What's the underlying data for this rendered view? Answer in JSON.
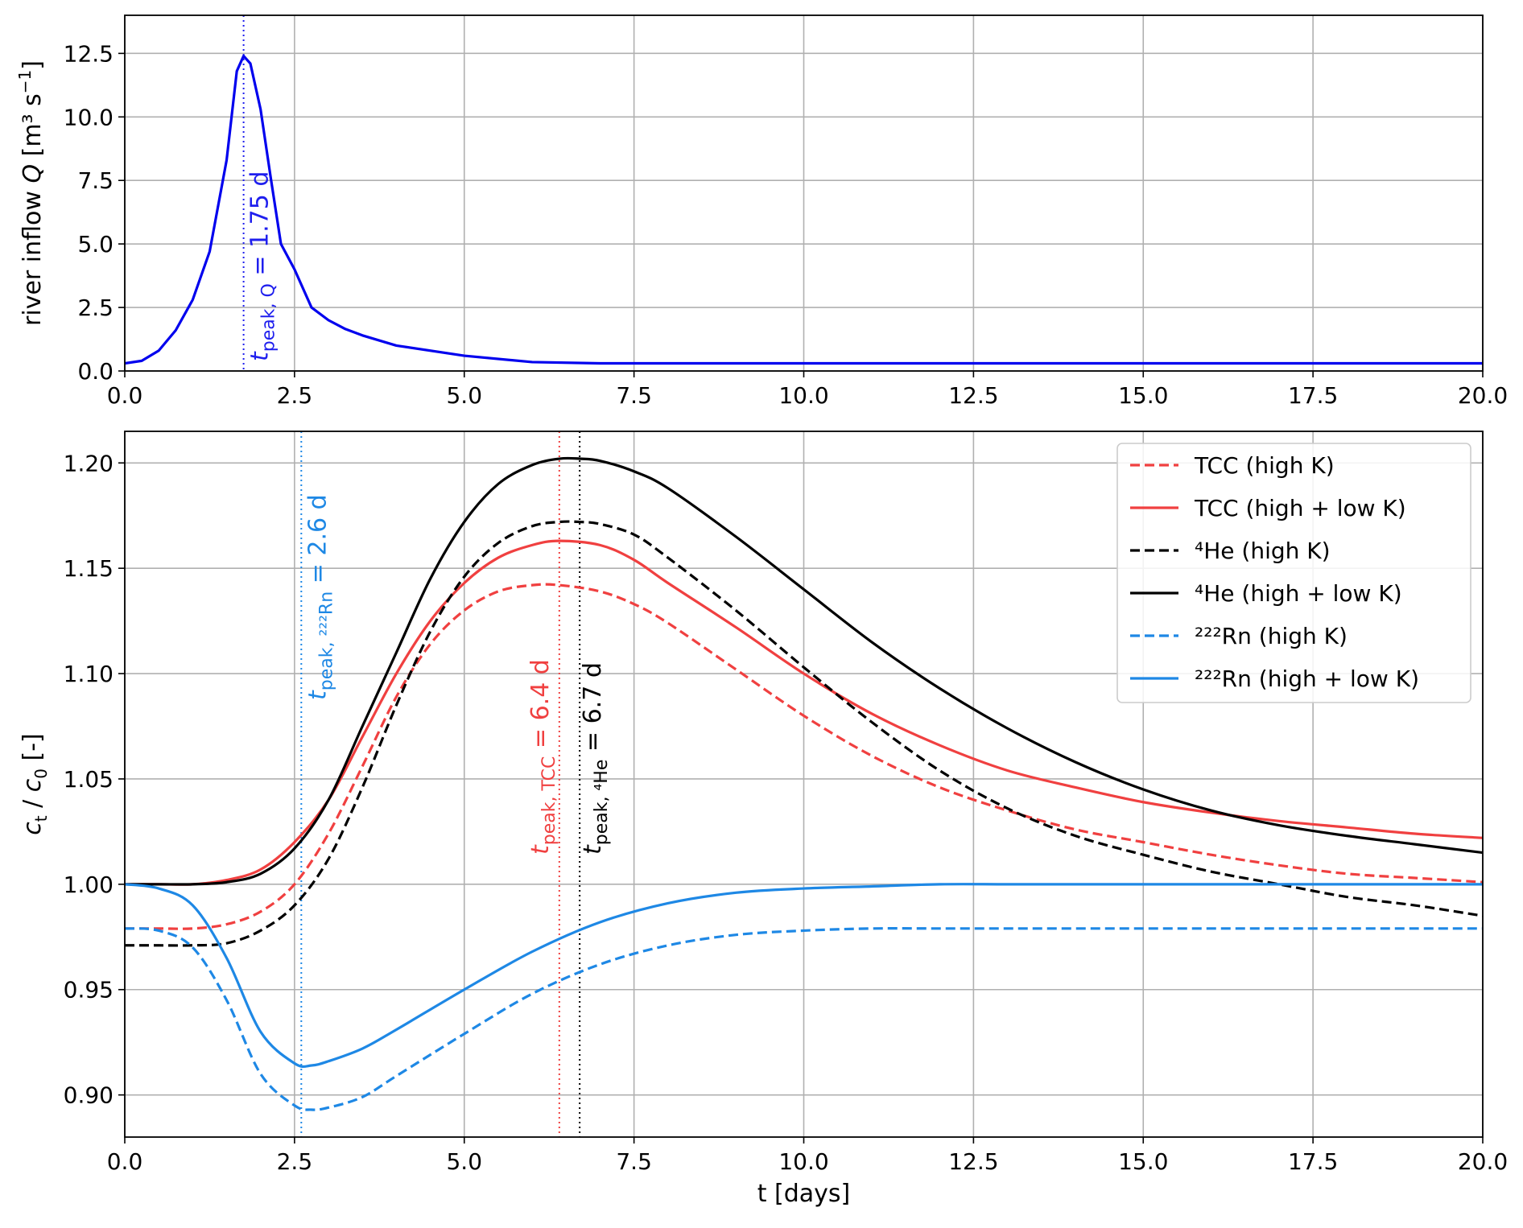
{
  "chart_data": [
    {
      "type": "line",
      "xlim": [
        0,
        20
      ],
      "ylim": [
        0,
        14
      ],
      "xticks": [
        "0.0",
        "2.5",
        "5.0",
        "7.5",
        "10.0",
        "12.5",
        "15.0",
        "17.5",
        "20.0"
      ],
      "yticks": [
        "0.0",
        "2.5",
        "5.0",
        "7.5",
        "10.0",
        "12.5"
      ],
      "ylabel": "river inflow Q [m³ s⁻¹]",
      "grid": true,
      "series": [
        {
          "color": "#0000ee",
          "style": "solid",
          "x": [
            0,
            0.25,
            0.5,
            0.75,
            1.0,
            1.25,
            1.5,
            1.65,
            1.75,
            1.85,
            2.0,
            2.15,
            2.3,
            2.5,
            2.75,
            3.0,
            3.25,
            3.5,
            4.0,
            5.0,
            6.0,
            7.0,
            8.0,
            10.0,
            12.5,
            15.0,
            17.5,
            20.0
          ],
          "y": [
            0.3,
            0.4,
            0.8,
            1.6,
            2.8,
            4.7,
            8.3,
            11.8,
            12.4,
            12.1,
            10.3,
            7.6,
            5.0,
            4.0,
            2.5,
            2.0,
            1.65,
            1.4,
            1.0,
            0.6,
            0.35,
            0.3,
            0.3,
            0.3,
            0.3,
            0.3,
            0.3,
            0.3
          ]
        }
      ],
      "annotations": [
        {
          "x": 1.75,
          "color": "#1f1fee",
          "main": "t",
          "sub": "peak, Q",
          "eq": " = ",
          "value": "1.75 d"
        }
      ]
    },
    {
      "type": "line",
      "xlim": [
        0,
        20
      ],
      "ylim": [
        0.88,
        1.215
      ],
      "xticks": [
        "0.0",
        "2.5",
        "5.0",
        "7.5",
        "10.0",
        "12.5",
        "15.0",
        "17.5",
        "20.0"
      ],
      "yticks": [
        "0.90",
        "0.95",
        "1.00",
        "1.05",
        "1.10",
        "1.15",
        "1.20"
      ],
      "xlabel": "t [days]",
      "ylabel": "ct / c0 [-]",
      "grid": true,
      "legend_position": "top-right",
      "series": [
        {
          "name": "TCC (high K)",
          "color": "#f04040",
          "style": "dashed",
          "x": [
            0,
            0.5,
            1.0,
            1.5,
            2.0,
            2.5,
            3.0,
            3.5,
            4.0,
            4.5,
            5.0,
            5.5,
            6.0,
            6.4,
            7.0,
            7.5,
            8.0,
            9.0,
            10.0,
            11.0,
            12.0,
            13.0,
            14.0,
            15.0,
            16.0,
            17.0,
            18.0,
            19.0,
            20.0
          ],
          "y": [
            0.979,
            0.979,
            0.979,
            0.981,
            0.987,
            1.0,
            1.024,
            1.056,
            1.089,
            1.114,
            1.13,
            1.139,
            1.142,
            1.142,
            1.139,
            1.133,
            1.124,
            1.102,
            1.08,
            1.061,
            1.046,
            1.035,
            1.026,
            1.02,
            1.014,
            1.009,
            1.005,
            1.003,
            1.001
          ]
        },
        {
          "name": "TCC (high + low K)",
          "color": "#f04040",
          "style": "solid",
          "x": [
            0,
            0.5,
            1.0,
            1.5,
            2.0,
            2.5,
            3.0,
            3.5,
            4.0,
            4.5,
            5.0,
            5.5,
            6.0,
            6.4,
            7.0,
            7.5,
            8.0,
            9.0,
            10.0,
            11.0,
            12.0,
            13.0,
            14.0,
            15.0,
            16.0,
            17.0,
            18.0,
            19.0,
            20.0
          ],
          "y": [
            1.0,
            1.0,
            1.0,
            1.002,
            1.007,
            1.02,
            1.04,
            1.07,
            1.1,
            1.125,
            1.143,
            1.155,
            1.161,
            1.163,
            1.161,
            1.154,
            1.143,
            1.122,
            1.1,
            1.081,
            1.066,
            1.054,
            1.046,
            1.039,
            1.034,
            1.03,
            1.027,
            1.024,
            1.022
          ]
        },
        {
          "name": "⁴He (high K)",
          "color": "#000000",
          "style": "dashed",
          "x": [
            0,
            0.5,
            1.0,
            1.5,
            2.0,
            2.5,
            3.0,
            3.5,
            4.0,
            4.5,
            5.0,
            5.5,
            6.0,
            6.4,
            6.7,
            7.0,
            7.5,
            8.0,
            9.0,
            10.0,
            11.0,
            12.0,
            13.0,
            14.0,
            15.0,
            16.0,
            17.0,
            18.0,
            19.0,
            20.0
          ],
          "y": [
            0.971,
            0.971,
            0.971,
            0.972,
            0.978,
            0.99,
            1.012,
            1.046,
            1.085,
            1.12,
            1.146,
            1.162,
            1.17,
            1.172,
            1.172,
            1.171,
            1.166,
            1.155,
            1.13,
            1.103,
            1.077,
            1.054,
            1.036,
            1.023,
            1.014,
            1.006,
            1.0,
            0.994,
            0.99,
            0.985
          ]
        },
        {
          "name": "⁴He (high + low K)",
          "color": "#000000",
          "style": "solid",
          "x": [
            0,
            0.5,
            1.0,
            1.5,
            2.0,
            2.5,
            3.0,
            3.5,
            4.0,
            4.5,
            5.0,
            5.5,
            6.0,
            6.4,
            6.7,
            7.0,
            7.5,
            8.0,
            9.0,
            10.0,
            11.0,
            12.0,
            13.0,
            14.0,
            15.0,
            16.0,
            17.0,
            18.0,
            19.0,
            20.0
          ],
          "y": [
            1.0,
            1.0,
            1.0,
            1.001,
            1.005,
            1.017,
            1.04,
            1.075,
            1.11,
            1.145,
            1.172,
            1.19,
            1.199,
            1.202,
            1.202,
            1.201,
            1.196,
            1.188,
            1.165,
            1.14,
            1.115,
            1.093,
            1.074,
            1.058,
            1.045,
            1.035,
            1.028,
            1.023,
            1.019,
            1.015
          ]
        },
        {
          "name": "²²²Rn (high K)",
          "color": "#1e88e5",
          "style": "dashed",
          "x": [
            0,
            0.5,
            1.0,
            1.5,
            2.0,
            2.5,
            2.75,
            3.0,
            3.5,
            4.0,
            5.0,
            6.0,
            7.0,
            8.0,
            9.0,
            10.0,
            11.0,
            12.0,
            13.0,
            14.0,
            15.0,
            16.0,
            17.0,
            18.0,
            19.0,
            20.0
          ],
          "y": [
            0.979,
            0.978,
            0.97,
            0.945,
            0.91,
            0.895,
            0.893,
            0.894,
            0.899,
            0.909,
            0.929,
            0.948,
            0.962,
            0.971,
            0.976,
            0.978,
            0.979,
            0.979,
            0.979,
            0.979,
            0.979,
            0.979,
            0.979,
            0.979,
            0.979,
            0.979
          ]
        },
        {
          "name": "²²²Rn (high + low K)",
          "color": "#1e88e5",
          "style": "solid",
          "x": [
            0,
            0.5,
            1.0,
            1.5,
            2.0,
            2.5,
            2.75,
            3.0,
            3.5,
            4.0,
            5.0,
            6.0,
            7.0,
            8.0,
            9.0,
            10.0,
            11.0,
            12.0,
            13.0,
            14.0,
            15.0,
            16.0,
            17.0,
            18.0,
            19.0,
            20.0
          ],
          "y": [
            1.0,
            0.998,
            0.99,
            0.965,
            0.93,
            0.915,
            0.914,
            0.916,
            0.922,
            0.931,
            0.95,
            0.968,
            0.982,
            0.991,
            0.996,
            0.998,
            0.999,
            1.0,
            1.0,
            1.0,
            1.0,
            1.0,
            1.0,
            1.0,
            1.0,
            1.0
          ]
        }
      ],
      "annotations": [
        {
          "x": 2.6,
          "color": "#1e88e5",
          "main": "t",
          "sub": "peak, ²²²Rn",
          "eq": " = ",
          "value": "2.6 d"
        },
        {
          "x": 6.4,
          "color": "#f04040",
          "main": "t",
          "sub": "peak, TCC",
          "eq": " = ",
          "value": "6.4 d"
        },
        {
          "x": 6.7,
          "color": "#000000",
          "main": "t",
          "sub": "peak, ⁴He",
          "eq": " = ",
          "value": "6.7 d"
        }
      ]
    }
  ]
}
